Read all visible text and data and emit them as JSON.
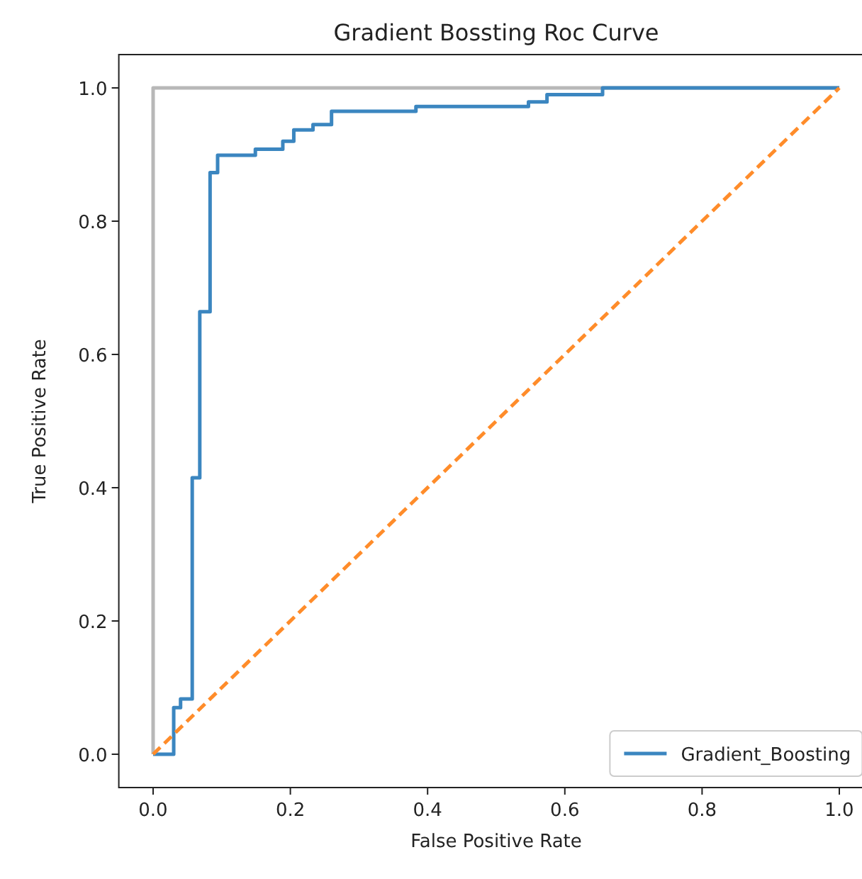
{
  "chart_data": {
    "type": "line",
    "title": "Gradient Bossting Roc Curve",
    "xlabel": "False Positive Rate",
    "ylabel": "True Positive Rate",
    "xlim": [
      -0.05,
      1.05
    ],
    "ylim": [
      -0.05,
      1.05
    ],
    "xticks": [
      {
        "value": 0,
        "label": "0.0"
      },
      0.2,
      0.4,
      0.6,
      0.8,
      {
        "value": 1,
        "label": "1.0"
      }
    ],
    "yticks": [
      {
        "value": 0,
        "label": "0.0"
      },
      0.2,
      0.4,
      0.6,
      0.8,
      {
        "value": 1,
        "label": "1.0"
      }
    ],
    "legend": "bottom right",
    "series": [
      {
        "type": "line",
        "color": "#b8b8b8",
        "x": [
          0,
          0,
          1
        ],
        "values": [
          0,
          1,
          1
        ]
      },
      {
        "type": "step",
        "name": "Gradient_Boosting",
        "color": "#3b86c0",
        "x": [
          0,
          0.03,
          0.04,
          0.057,
          0.068,
          0.083,
          0.094,
          0.149,
          0.189,
          0.205,
          0.233,
          0.26,
          0.383,
          0.547,
          0.574,
          0.655,
          1
        ],
        "values": [
          0,
          0.07,
          0.083,
          0.415,
          0.664,
          0.873,
          0.899,
          0.908,
          0.92,
          0.937,
          0.945,
          0.965,
          0.972,
          0.979,
          0.99,
          1,
          1
        ]
      },
      {
        "type": "line",
        "color": "#ff8c2a",
        "line_style": "dashed",
        "x": [
          0,
          1
        ],
        "values": [
          0,
          1
        ]
      }
    ]
  }
}
